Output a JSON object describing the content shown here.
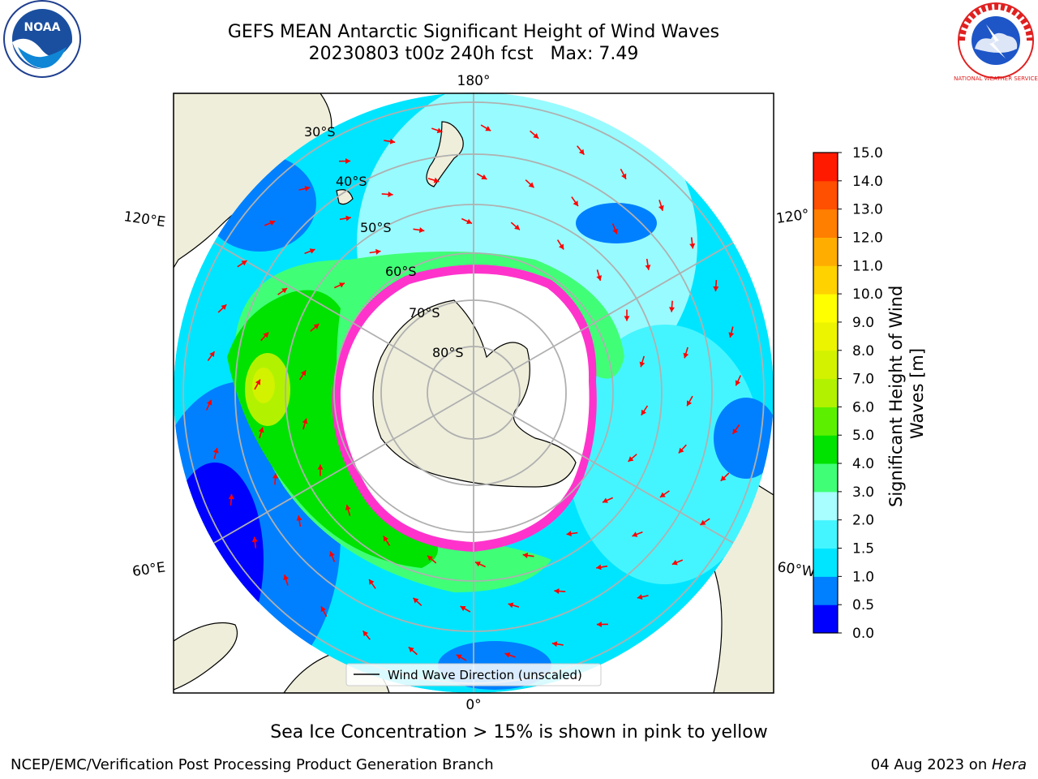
{
  "title": {
    "line1": "GEFS MEAN Antarctic Significant Height of Wind Waves",
    "line2": "20230803 t00z 240h fcst   Max: 7.49"
  },
  "logos": {
    "left": {
      "icon": "noaa-logo-icon",
      "text": "NOAA"
    },
    "right": {
      "icon": "national-weather-service-logo-icon",
      "text": "NATIONAL WEATHER SERVICE"
    }
  },
  "map": {
    "projection": "south-polar-stereographic",
    "background_land": "#efeedb",
    "sea_ice_color": "#ffffff",
    "longitude_labels": {
      "top": "180°",
      "bottom": "0°",
      "upper_left": "120°E",
      "upper_right": "120°",
      "lower_left": "60°E",
      "lower_right": "60°W"
    },
    "latitude_labels": [
      "30°S",
      "40°S",
      "50°S",
      "60°S",
      "70°S",
      "80°S"
    ],
    "legend": {
      "label": "Wind Wave Direction (unscaled)",
      "arrow_color": "#ff0000"
    }
  },
  "colorbar": {
    "label": "Significant Height of Wind Waves [m]",
    "ticks": [
      "0.0",
      "0.5",
      "1.0",
      "1.5",
      "2.0",
      "3.0",
      "4.0",
      "5.0",
      "6.0",
      "7.0",
      "8.0",
      "9.0",
      "10.0",
      "11.0",
      "12.0",
      "13.0",
      "14.0",
      "15.0"
    ],
    "colors": [
      "#0000ff",
      "#0080ff",
      "#00e5ff",
      "#44f5ff",
      "#a8fdff",
      "#40ff77",
      "#00e200",
      "#5cf000",
      "#b2f200",
      "#d2f200",
      "#ecf400",
      "#ffff00",
      "#ffd200",
      "#ffae00",
      "#ff7f00",
      "#ff4f00",
      "#ff1a00"
    ]
  },
  "caption": "Sea Ice Concentration > 15% is shown in pink to yellow",
  "footer": {
    "left": "NCEP/EMC/Verification Post Processing Product Generation Branch",
    "right_date": "04 Aug 2023 on ",
    "right_host": "Hera"
  }
}
